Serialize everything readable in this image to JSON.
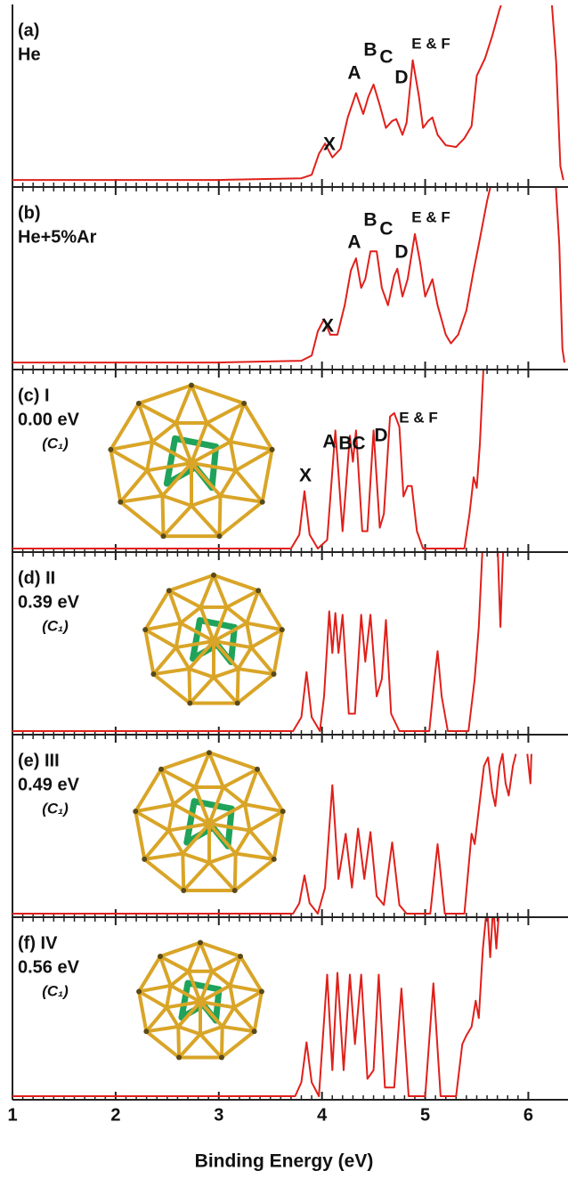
{
  "chart_data": [
    {
      "type": "line",
      "color": "#e0201b",
      "xlim": [
        1,
        6.35
      ],
      "ylim": [
        0,
        1
      ],
      "xticks": [
        1,
        2,
        3,
        4,
        5,
        6
      ],
      "title_lines": [
        "(a)",
        "He"
      ],
      "peak_labels": [
        "X",
        "A",
        "B",
        "C",
        "D",
        "E & F"
      ],
      "x": [
        1.0,
        2.0,
        3.0,
        3.8,
        3.9,
        3.97,
        4.03,
        4.1,
        4.18,
        4.25,
        4.33,
        4.4,
        4.45,
        4.5,
        4.56,
        4.62,
        4.68,
        4.72,
        4.78,
        4.82,
        4.88,
        4.94,
        4.98,
        5.03,
        5.07,
        5.12,
        5.2,
        5.3,
        5.38,
        5.45,
        5.5,
        5.58,
        5.65,
        5.72,
        5.78,
        6.0,
        6.22,
        6.27,
        6.31,
        6.34
      ],
      "values": [
        0.02,
        0.02,
        0.02,
        0.03,
        0.05,
        0.17,
        0.23,
        0.15,
        0.2,
        0.38,
        0.52,
        0.4,
        0.5,
        0.57,
        0.45,
        0.32,
        0.36,
        0.37,
        0.28,
        0.35,
        0.71,
        0.5,
        0.32,
        0.36,
        0.38,
        0.28,
        0.22,
        0.21,
        0.26,
        0.33,
        0.62,
        0.72,
        0.85,
        1.0,
        1.1,
        null,
        1.1,
        0.7,
        0.1,
        0.02
      ]
    },
    {
      "type": "line",
      "color": "#e0201b",
      "xlim": [
        1,
        6.35
      ],
      "ylim": [
        0,
        1
      ],
      "xticks": [
        1,
        2,
        3,
        4,
        5,
        6
      ],
      "title_lines": [
        "(b)",
        "He+5%Ar"
      ],
      "peak_labels": [
        "X",
        "A",
        "B",
        "C",
        "D",
        "E & F"
      ],
      "x": [
        1.0,
        3.0,
        3.8,
        3.9,
        3.96,
        4.02,
        4.08,
        4.15,
        4.22,
        4.28,
        4.33,
        4.38,
        4.42,
        4.47,
        4.53,
        4.58,
        4.64,
        4.7,
        4.73,
        4.78,
        4.83,
        4.9,
        4.95,
        5.0,
        5.07,
        5.12,
        5.2,
        5.25,
        5.32,
        5.4,
        5.47,
        5.52,
        5.6,
        5.66,
        5.9,
        6.26,
        6.3,
        6.33,
        6.35
      ],
      "values": [
        0.02,
        0.02,
        0.03,
        0.06,
        0.2,
        0.27,
        0.18,
        0.18,
        0.35,
        0.55,
        0.62,
        0.45,
        0.5,
        0.66,
        0.66,
        0.45,
        0.35,
        0.52,
        0.56,
        0.4,
        0.5,
        0.76,
        0.6,
        0.4,
        0.5,
        0.35,
        0.18,
        0.13,
        0.18,
        0.32,
        0.55,
        0.7,
        0.95,
        1.1,
        null,
        1.1,
        0.7,
        0.1,
        0.02
      ]
    },
    {
      "type": "line",
      "color": "#e0201b",
      "xlim": [
        1,
        6.35
      ],
      "ylim": [
        0,
        1
      ],
      "xticks": [
        1,
        2,
        3,
        4,
        5,
        6
      ],
      "title_lines": [
        "(c) I",
        "0.00 eV",
        "(C₁)"
      ],
      "peak_labels": [
        "X",
        "A",
        "B",
        "C",
        "D",
        "E & F"
      ],
      "x": [
        1.0,
        3.7,
        3.78,
        3.83,
        3.88,
        3.96,
        4.05,
        4.13,
        4.2,
        4.27,
        4.3,
        4.33,
        4.39,
        4.44,
        4.5,
        4.56,
        4.6,
        4.66,
        4.7,
        4.75,
        4.79,
        4.83,
        4.87,
        4.92,
        4.98,
        5.38,
        5.43,
        5.47,
        5.5,
        5.53,
        5.57
      ],
      "values": [
        0.0,
        0.0,
        0.08,
        0.33,
        0.08,
        0.0,
        0.05,
        0.68,
        0.1,
        0.65,
        0.5,
        0.68,
        0.1,
        0.1,
        0.68,
        0.12,
        0.2,
        0.76,
        0.78,
        0.7,
        0.3,
        0.36,
        0.36,
        0.1,
        0.0,
        0.0,
        0.2,
        0.41,
        0.35,
        0.6,
        1.1
      ]
    },
    {
      "type": "line",
      "color": "#e0201b",
      "xlim": [
        1,
        6.35
      ],
      "ylim": [
        0,
        1
      ],
      "xticks": [
        1,
        2,
        3,
        4,
        5,
        6
      ],
      "title_lines": [
        "(d) II",
        "0.39 eV",
        "(C₁)"
      ],
      "x": [
        1.0,
        3.72,
        3.8,
        3.85,
        3.9,
        3.98,
        4.02,
        4.07,
        4.1,
        4.13,
        4.16,
        4.2,
        4.26,
        4.32,
        4.38,
        4.42,
        4.47,
        4.53,
        4.58,
        4.62,
        4.67,
        4.75,
        5.04,
        5.09,
        5.12,
        5.16,
        5.22,
        5.42,
        5.48,
        5.52,
        5.56,
        5.65,
        5.7,
        5.73,
        5.76
      ],
      "values": [
        0.0,
        0.0,
        0.08,
        0.34,
        0.08,
        0.0,
        0.2,
        0.69,
        0.45,
        0.68,
        0.45,
        0.67,
        0.1,
        0.1,
        0.67,
        0.4,
        0.67,
        0.2,
        0.3,
        0.64,
        0.1,
        0.0,
        0.0,
        0.3,
        0.46,
        0.2,
        0.0,
        0.0,
        0.3,
        0.6,
        1.1,
        null,
        1.1,
        0.6,
        1.1
      ]
    },
    {
      "type": "line",
      "color": "#e0201b",
      "xlim": [
        1,
        6.35
      ],
      "ylim": [
        0,
        1
      ],
      "xticks": [
        1,
        2,
        3,
        4,
        5,
        6
      ],
      "title_lines": [
        "(e) III",
        "0.49 eV",
        "(C₁)"
      ],
      "x": [
        1.0,
        3.72,
        3.78,
        3.83,
        3.88,
        3.96,
        4.03,
        4.1,
        4.16,
        4.23,
        4.29,
        4.35,
        4.41,
        4.47,
        4.53,
        4.6,
        4.68,
        4.75,
        4.82,
        5.05,
        5.12,
        5.19,
        5.38,
        5.45,
        5.48,
        5.52,
        5.57,
        5.61,
        5.65,
        5.68,
        5.72,
        5.75,
        5.78,
        5.81,
        5.85,
        5.88,
        5.94,
        5.99,
        6.02,
        6.03
      ],
      "values": [
        0.0,
        0.0,
        0.06,
        0.22,
        0.06,
        0.0,
        0.15,
        0.74,
        0.2,
        0.46,
        0.15,
        0.49,
        0.2,
        0.47,
        0.1,
        0.05,
        0.41,
        0.05,
        0.0,
        0.0,
        0.4,
        0.0,
        0.0,
        0.46,
        0.4,
        0.6,
        0.85,
        0.9,
        0.7,
        0.62,
        0.85,
        0.92,
        0.75,
        0.68,
        0.85,
        0.92,
        null,
        0.92,
        0.75,
        0.92
      ]
    },
    {
      "type": "line",
      "color": "#e0201b",
      "xlim": [
        1,
        6.35
      ],
      "ylim": [
        0,
        1
      ],
      "xticks": [
        1,
        2,
        3,
        4,
        5,
        6
      ],
      "title_lines": [
        "(f) IV",
        "0.56 eV",
        "(C₁)"
      ],
      "xlabel": "Binding Energy (eV)",
      "x": [
        1.0,
        3.74,
        3.8,
        3.85,
        3.9,
        3.97,
        4.05,
        4.1,
        4.15,
        4.21,
        4.27,
        4.32,
        4.38,
        4.44,
        4.5,
        4.55,
        4.61,
        4.7,
        4.77,
        4.84,
        5.0,
        5.08,
        5.15,
        5.3,
        5.36,
        5.4,
        5.45,
        5.49,
        5.52,
        5.56,
        5.6,
        5.63,
        5.66,
        5.69,
        5.72
      ],
      "values": [
        0.0,
        0.0,
        0.08,
        0.31,
        0.08,
        0.0,
        0.7,
        0.15,
        0.71,
        0.15,
        0.7,
        0.3,
        0.7,
        0.1,
        0.15,
        0.7,
        0.05,
        0.05,
        0.62,
        0.0,
        0.0,
        0.65,
        0.0,
        0.0,
        0.3,
        0.35,
        0.4,
        0.55,
        0.45,
        0.85,
        1.1,
        0.8,
        1.1,
        0.85,
        1.1
      ]
    }
  ]
}
